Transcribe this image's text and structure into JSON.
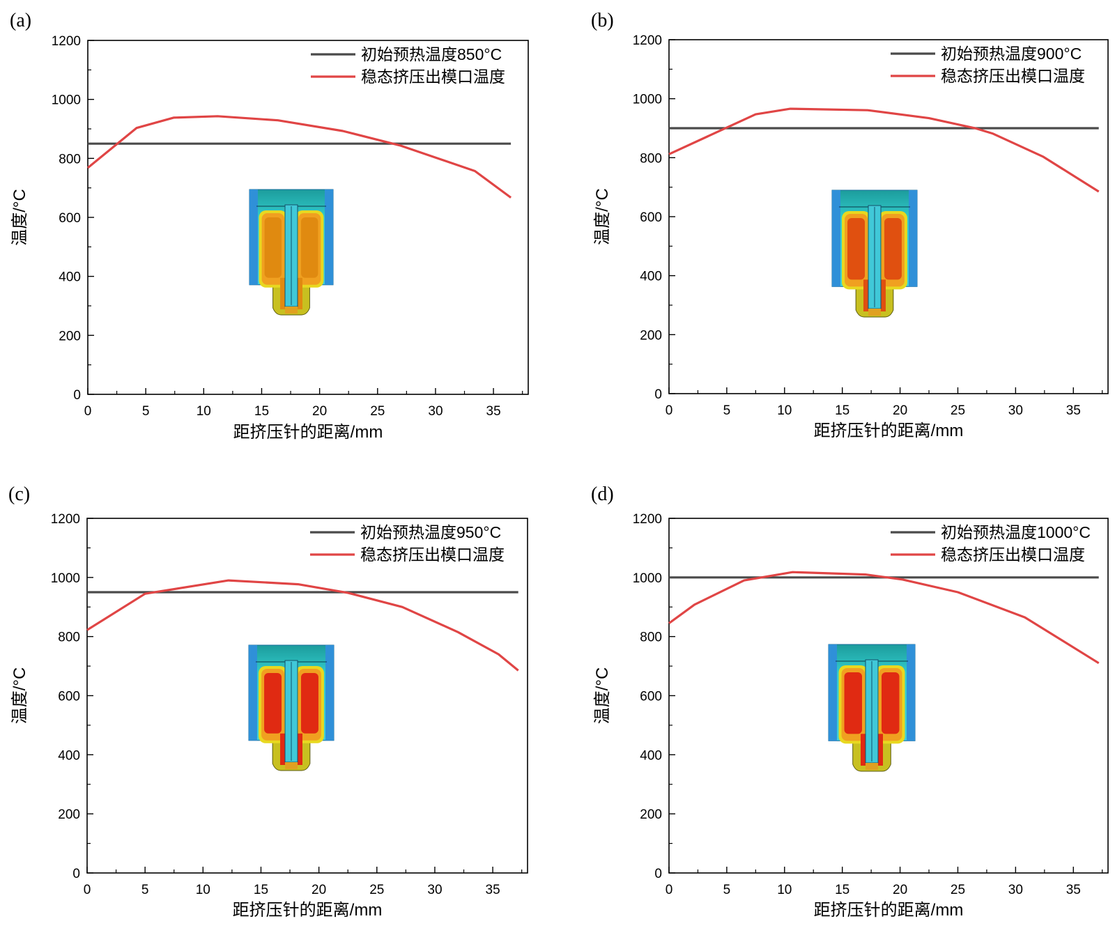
{
  "colors": {
    "axis": "#000000",
    "initial_line": "#4a4a4a",
    "steady_line": "#e04545",
    "background": "#ffffff"
  },
  "chart_data": [
    {
      "type": "line",
      "panel_label": "(a)",
      "title": "",
      "xlabel": "距挤压针的距离/mm",
      "ylabel": "温度/°C",
      "xlim": [
        0,
        38
      ],
      "ylim": [
        0,
        1200
      ],
      "xticks": [
        0,
        5,
        10,
        15,
        20,
        25,
        30,
        35
      ],
      "yticks": [
        0,
        200,
        400,
        600,
        800,
        1000,
        1200
      ],
      "legend_position": "top-right",
      "series": [
        {
          "name": "初始预热温度850°C",
          "color_key": "initial_line",
          "x": [
            0,
            36.5
          ],
          "y": [
            850,
            850
          ]
        },
        {
          "name": "稳态挤压出模口温度",
          "color_key": "steady_line",
          "x": [
            0,
            4.2,
            7.4,
            11.2,
            16.4,
            22.0,
            27.0,
            33.4,
            36.5
          ],
          "y": [
            768,
            903,
            938,
            943,
            929,
            893,
            843,
            757,
            667
          ]
        }
      ],
      "inset": {
        "type": "temperature-contour",
        "description_icon": "die-thermal-contour-icon"
      }
    },
    {
      "type": "line",
      "panel_label": "(b)",
      "title": "",
      "xlabel": "距挤压针的距离/mm",
      "ylabel": "温度/°C",
      "xlim": [
        0,
        38
      ],
      "ylim": [
        0,
        1200
      ],
      "xticks": [
        0,
        5,
        10,
        15,
        20,
        25,
        30,
        35
      ],
      "yticks": [
        0,
        200,
        400,
        600,
        800,
        1000,
        1200
      ],
      "legend_position": "top-right",
      "series": [
        {
          "name": "初始预热温度900°C",
          "color_key": "initial_line",
          "x": [
            0,
            37.2
          ],
          "y": [
            900,
            900
          ]
        },
        {
          "name": "稳态挤压出模口温度",
          "color_key": "steady_line",
          "x": [
            0,
            7.5,
            10.5,
            17.2,
            22.5,
            26.5,
            28.0,
            32.4,
            37.2
          ],
          "y": [
            812,
            947,
            966,
            961,
            934,
            900,
            882,
            803,
            685
          ]
        }
      ],
      "inset": {
        "type": "temperature-contour",
        "description_icon": "die-thermal-contour-icon"
      }
    },
    {
      "type": "line",
      "panel_label": "(c)",
      "title": "",
      "xlabel": "距挤压针的距离/mm",
      "ylabel": "温度/°C",
      "xlim": [
        0,
        38
      ],
      "ylim": [
        0,
        1200
      ],
      "xticks": [
        0,
        5,
        10,
        15,
        20,
        25,
        30,
        35
      ],
      "yticks": [
        0,
        200,
        400,
        600,
        800,
        1000,
        1200
      ],
      "legend_position": "top-right",
      "series": [
        {
          "name": "初始预热温度950°C",
          "color_key": "initial_line",
          "x": [
            0,
            37.2
          ],
          "y": [
            950,
            950
          ]
        },
        {
          "name": "稳态挤压出模口温度",
          "color_key": "steady_line",
          "x": [
            0,
            5.0,
            12.2,
            18.2,
            22.5,
            27.2,
            32.0,
            35.5,
            37.2
          ],
          "y": [
            822,
            945,
            990,
            977,
            948,
            900,
            815,
            740,
            685
          ]
        }
      ],
      "inset": {
        "type": "temperature-contour",
        "description_icon": "die-thermal-contour-icon"
      }
    },
    {
      "type": "line",
      "panel_label": "(d)",
      "title": "",
      "xlabel": "距挤压针的距离/mm",
      "ylabel": "温度/°C",
      "xlim": [
        0,
        38
      ],
      "ylim": [
        0,
        1200
      ],
      "xticks": [
        0,
        5,
        10,
        15,
        20,
        25,
        30,
        35
      ],
      "yticks": [
        0,
        200,
        400,
        600,
        800,
        1000,
        1200
      ],
      "legend_position": "top-right",
      "series": [
        {
          "name": "初始预热温度1000°C",
          "color_key": "initial_line",
          "x": [
            0,
            37.2
          ],
          "y": [
            1000,
            1000
          ]
        },
        {
          "name": "稳态挤压出模口温度",
          "color_key": "steady_line",
          "x": [
            0,
            2.2,
            6.5,
            10.7,
            17.0,
            20.2,
            25.0,
            30.8,
            37.2
          ],
          "y": [
            845,
            908,
            990,
            1018,
            1010,
            993,
            950,
            865,
            710
          ]
        }
      ],
      "inset": {
        "type": "temperature-contour",
        "description_icon": "die-thermal-contour-icon"
      }
    }
  ]
}
